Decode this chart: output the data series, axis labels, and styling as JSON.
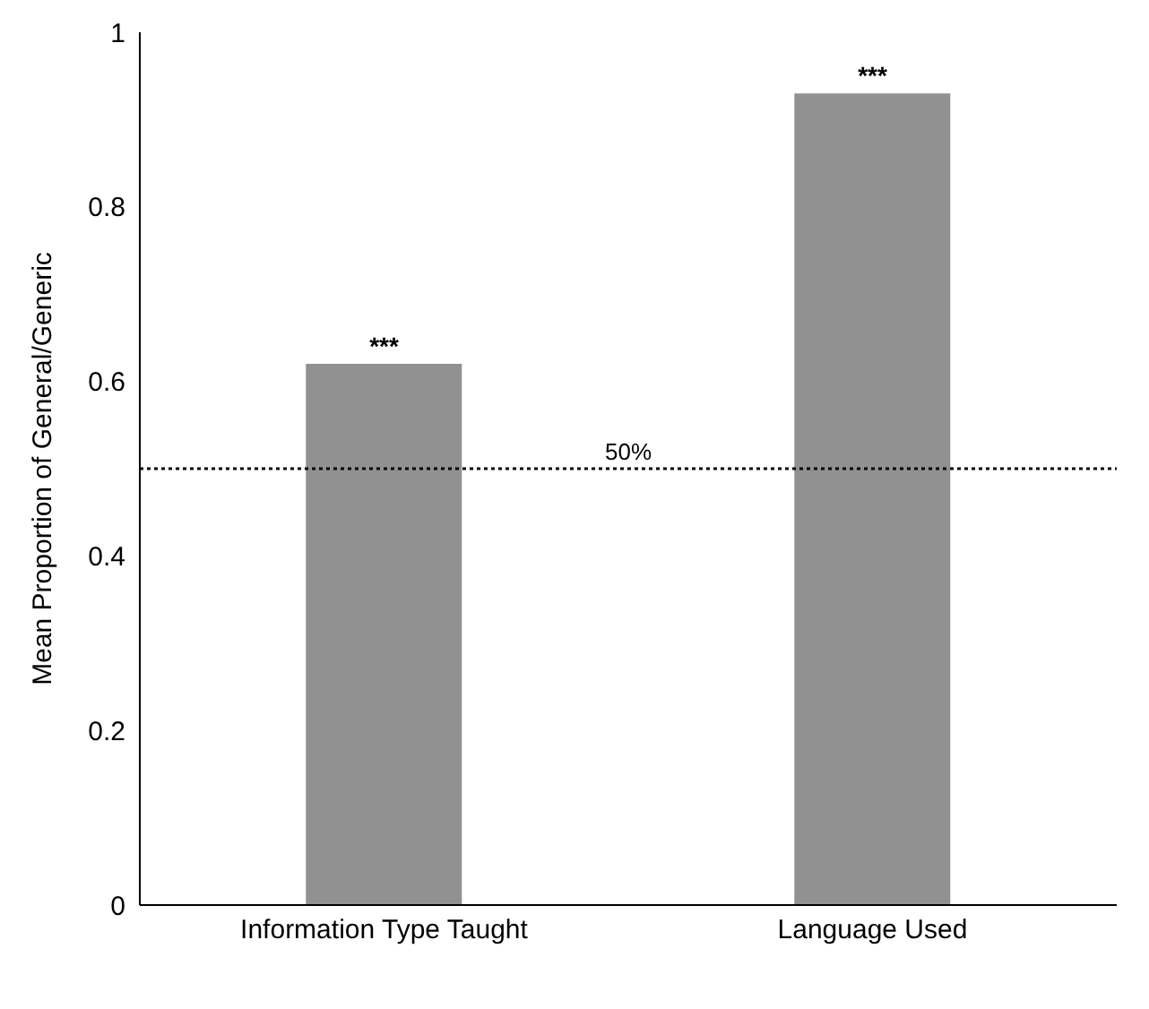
{
  "chart_data": {
    "type": "bar",
    "ylabel": "Mean Proportion of General/Generic",
    "categories": [
      "Information Type Taught",
      "Language Used"
    ],
    "values": [
      0.62,
      0.93
    ],
    "color": "#919191",
    "ylim": [
      0,
      1
    ],
    "yticks": [
      0,
      {
        "value": 0.2,
        "label": "0.2"
      },
      {
        "value": 0.4,
        "label": "0.4"
      },
      {
        "value": 0.6,
        "label": "0.6"
      },
      {
        "value": 0.8,
        "label": "0.8"
      },
      1
    ],
    "grid": false,
    "ref_lines": [
      {
        "axis": "y",
        "value": 0.5,
        "label": "50%",
        "color": "#000000",
        "line_style": "dotted"
      }
    ],
    "annotations": [
      {
        "text": "***",
        "x": "Information Type Taught",
        "y": 0.62
      },
      {
        "text": "***",
        "x": "Language Used",
        "y": 0.93
      }
    ]
  }
}
